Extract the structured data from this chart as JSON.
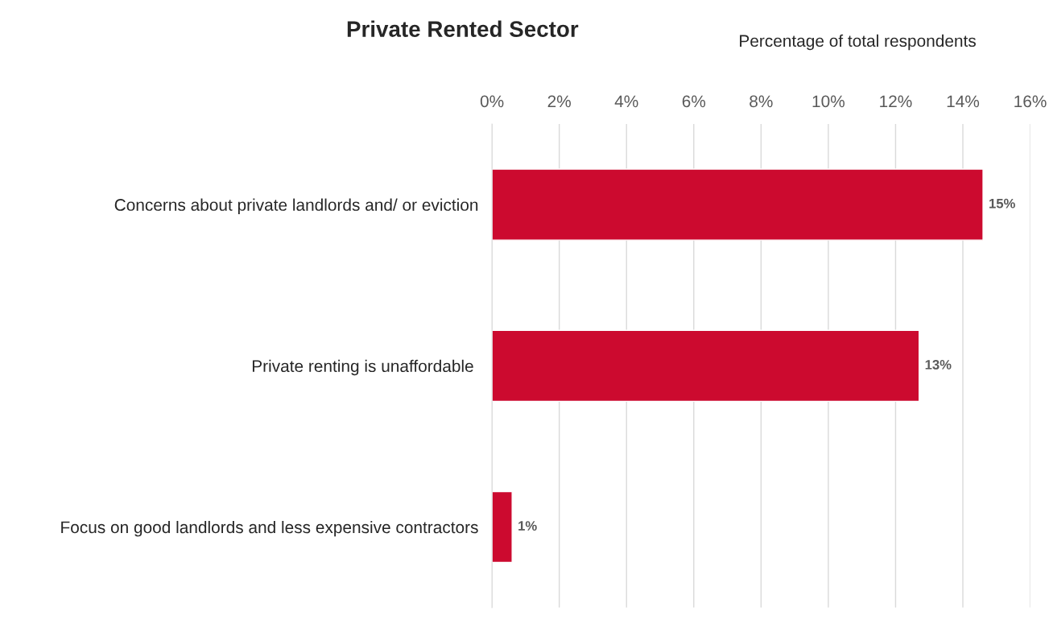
{
  "chart_data": {
    "type": "bar",
    "orientation": "horizontal",
    "title": "Private Rented Sector",
    "xlabel": "Percentage of total respondents",
    "categories": [
      "Concerns about private landlords and/ or eviction",
      "Private renting is unaffordable ",
      "Focus on good landlords and less expensive contractors"
    ],
    "values": [
      14.6,
      12.7,
      0.6
    ],
    "value_labels": [
      "15%",
      "13%",
      "1%"
    ],
    "color": "#cc0a2f",
    "xlim": [
      0,
      16
    ],
    "xticks": [
      {
        "value": 0,
        "label": "0%"
      },
      {
        "value": 2,
        "label": "2%"
      },
      {
        "value": 4,
        "label": "4%"
      },
      {
        "value": 6,
        "label": "6%"
      },
      {
        "value": 8,
        "label": "8%"
      },
      {
        "value": 10,
        "label": "10%"
      },
      {
        "value": 12,
        "label": "12%"
      },
      {
        "value": 14,
        "label": "14%"
      },
      {
        "value": 16,
        "label": "16%"
      }
    ],
    "grid": "x",
    "legend": false
  }
}
